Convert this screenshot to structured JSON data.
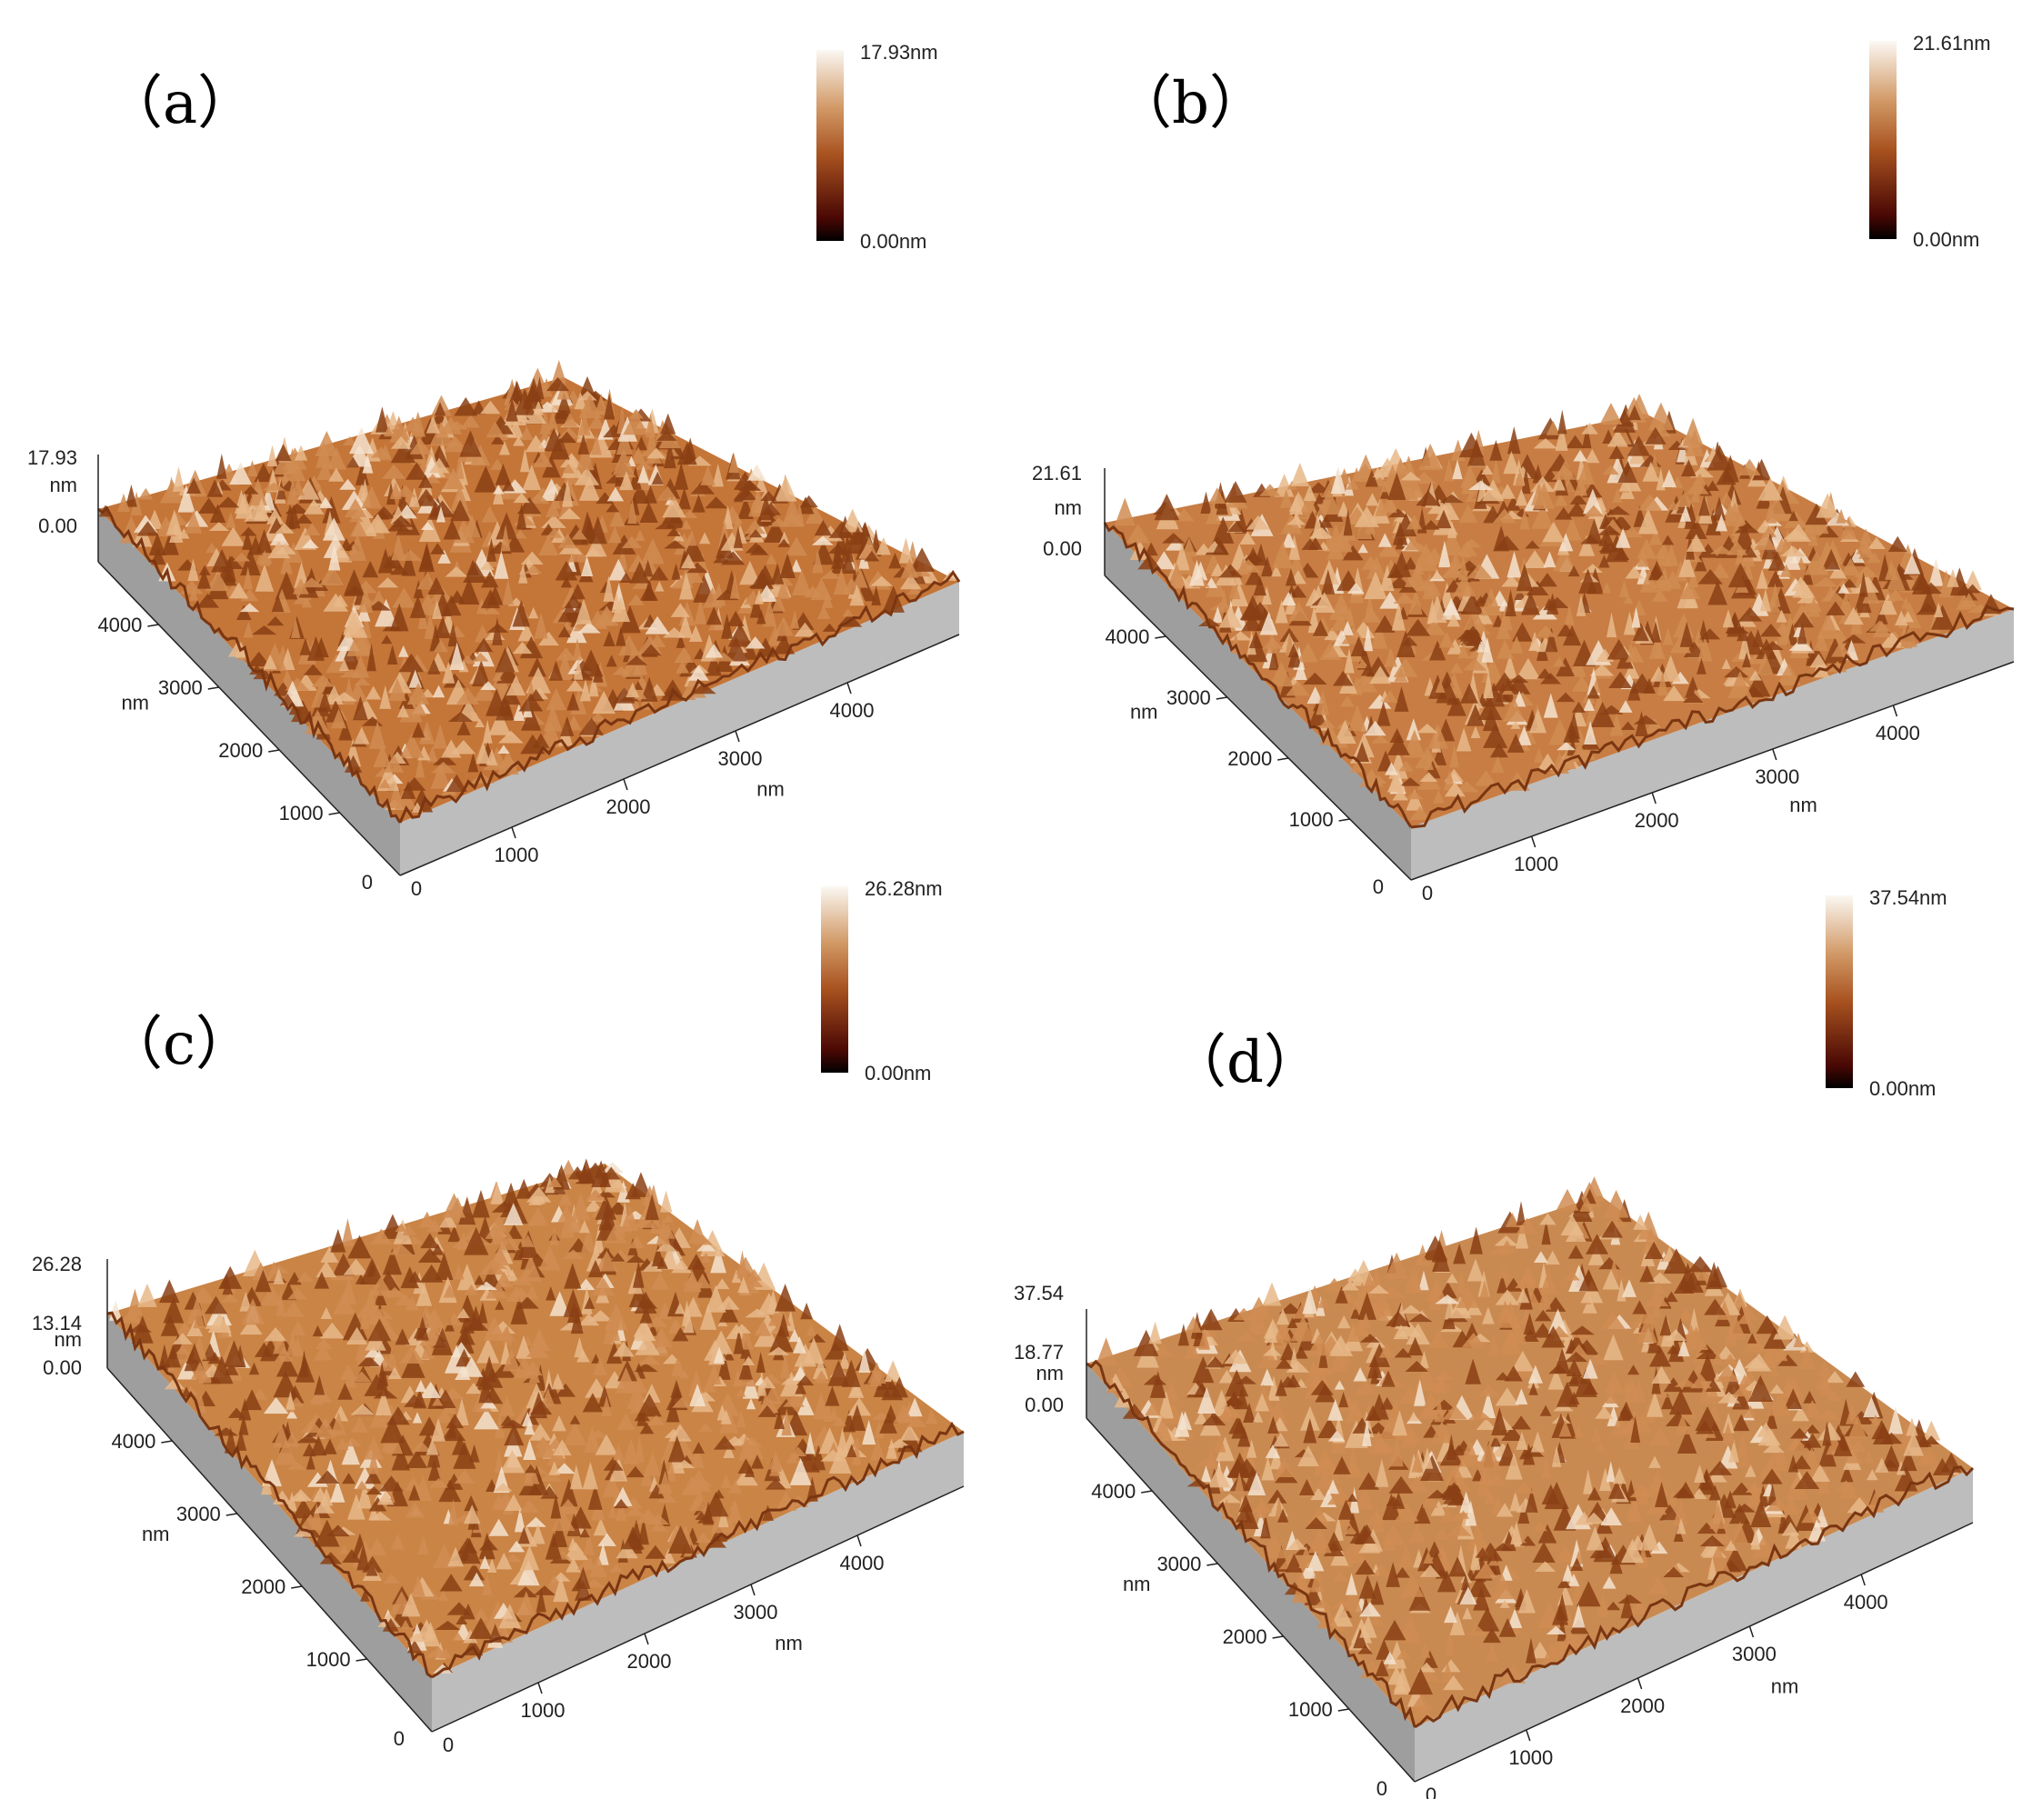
{
  "panels": [
    {
      "id": "a",
      "label": "（a）",
      "colorbar": {
        "max_label": "17.93nm",
        "min_label": "0.00nm"
      },
      "z_axis": {
        "top": "17.93",
        "mid": "",
        "unit": "nm",
        "bottom": "0.00"
      },
      "left_axis": {
        "ticks": [
          "4000",
          "3000",
          "2000",
          "1000"
        ],
        "unit": "nm",
        "origin": "0"
      },
      "right_axis": {
        "ticks": [
          "1000",
          "2000",
          "3000",
          "4000"
        ],
        "unit": "nm",
        "origin": "0"
      }
    },
    {
      "id": "b",
      "label": "（b）",
      "colorbar": {
        "max_label": "21.61nm",
        "min_label": "0.00nm"
      },
      "z_axis": {
        "top": "21.61",
        "mid": "",
        "unit": "nm",
        "bottom": "0.00"
      },
      "left_axis": {
        "ticks": [
          "4000",
          "3000",
          "2000",
          "1000"
        ],
        "unit": "nm",
        "origin": "0"
      },
      "right_axis": {
        "ticks": [
          "1000",
          "2000",
          "3000",
          "4000"
        ],
        "unit": "nm",
        "origin": "0"
      }
    },
    {
      "id": "c",
      "label": "（c）",
      "colorbar": {
        "max_label": "26.28nm",
        "min_label": "0.00nm"
      },
      "z_axis": {
        "top": "26.28",
        "mid": "13.14",
        "unit": "nm",
        "bottom": "0.00"
      },
      "left_axis": {
        "ticks": [
          "4000",
          "3000",
          "2000",
          "1000"
        ],
        "unit": "nm",
        "origin": "0"
      },
      "right_axis": {
        "ticks": [
          "1000",
          "2000",
          "3000",
          "4000"
        ],
        "unit": "nm",
        "origin": "0"
      }
    },
    {
      "id": "d",
      "label": "（d）",
      "colorbar": {
        "max_label": "37.54nm",
        "min_label": "0.00nm"
      },
      "z_axis": {
        "top": "37.54",
        "mid": "18.77",
        "unit": "nm",
        "bottom": "0.00"
      },
      "left_axis": {
        "ticks": [
          "4000",
          "3000",
          "2000",
          "1000"
        ],
        "unit": "nm",
        "origin": "0"
      },
      "right_axis": {
        "ticks": [
          "1000",
          "2000",
          "3000",
          "4000"
        ],
        "unit": "nm",
        "origin": "0"
      }
    }
  ],
  "colors": {
    "surface_dark": "#3a0a02",
    "surface_mid": "#b8622a",
    "surface_light": "#f6efe6",
    "wall": "#a0a0a0"
  }
}
